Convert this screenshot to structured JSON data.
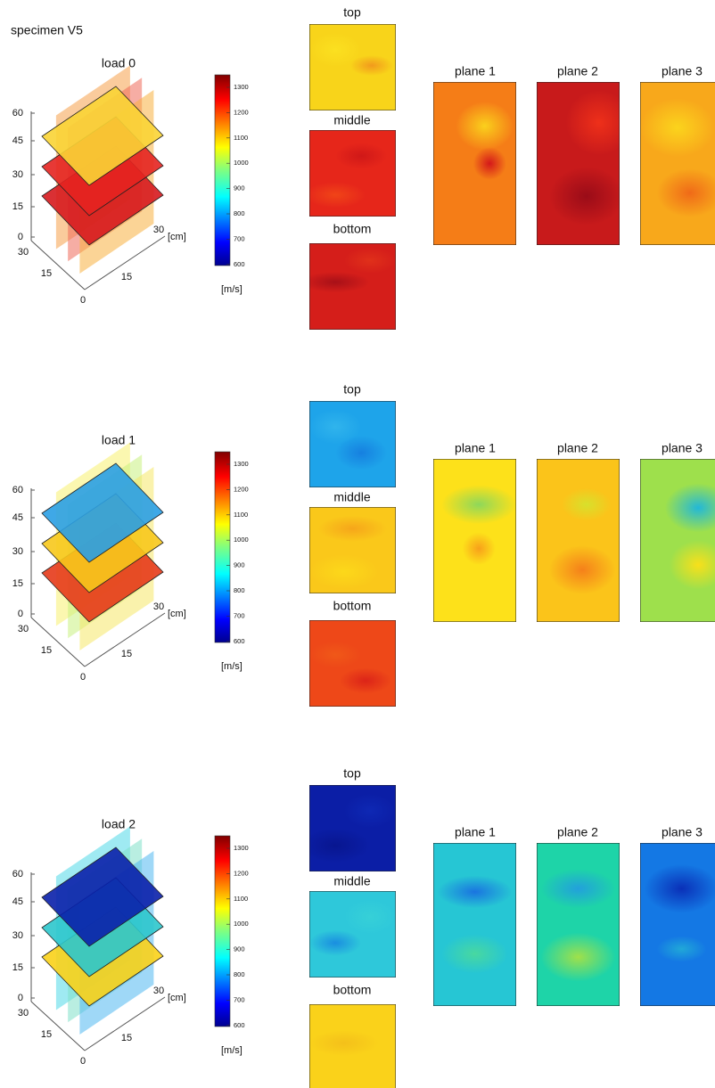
{
  "title": "specimen V5",
  "panels": [
    {
      "label": "load 0",
      "z_ticks": [
        "60",
        "45",
        "30",
        "15",
        "0"
      ],
      "depth_ticks": [
        "30",
        "15",
        "0"
      ],
      "width_ticks": [
        "15",
        "30"
      ],
      "axis_unit": "[cm]",
      "colorbar_ticks": [
        "1300",
        "1200",
        "1100",
        "1000",
        "900",
        "800",
        "700",
        "600"
      ],
      "colorbar_unit": "[m/s]",
      "slices": [
        "top",
        "middle",
        "bottom"
      ],
      "planes": [
        "plane 1",
        "plane 2",
        "plane 3"
      ]
    },
    {
      "label": "load 1",
      "z_ticks": [
        "60",
        "45",
        "30",
        "15",
        "0"
      ],
      "depth_ticks": [
        "30",
        "15",
        "0"
      ],
      "width_ticks": [
        "15",
        "30"
      ],
      "axis_unit": "[cm]",
      "colorbar_ticks": [
        "1300",
        "1200",
        "1100",
        "1000",
        "900",
        "800",
        "700",
        "600"
      ],
      "colorbar_unit": "[m/s]",
      "slices": [
        "top",
        "middle",
        "bottom"
      ],
      "planes": [
        "plane 1",
        "plane 2",
        "plane 3"
      ]
    },
    {
      "label": "load 2",
      "z_ticks": [
        "60",
        "45",
        "30",
        "15",
        "0"
      ],
      "depth_ticks": [
        "30",
        "15",
        "0"
      ],
      "width_ticks": [
        "15",
        "30"
      ],
      "axis_unit": "[cm]",
      "colorbar_ticks": [
        "1300",
        "1200",
        "1100",
        "1000",
        "900",
        "800",
        "700",
        "600"
      ],
      "colorbar_unit": "[m/s]",
      "slices": [
        "top",
        "middle",
        "bottom"
      ],
      "planes": [
        "plane 1",
        "plane 2",
        "plane 3"
      ]
    }
  ]
}
